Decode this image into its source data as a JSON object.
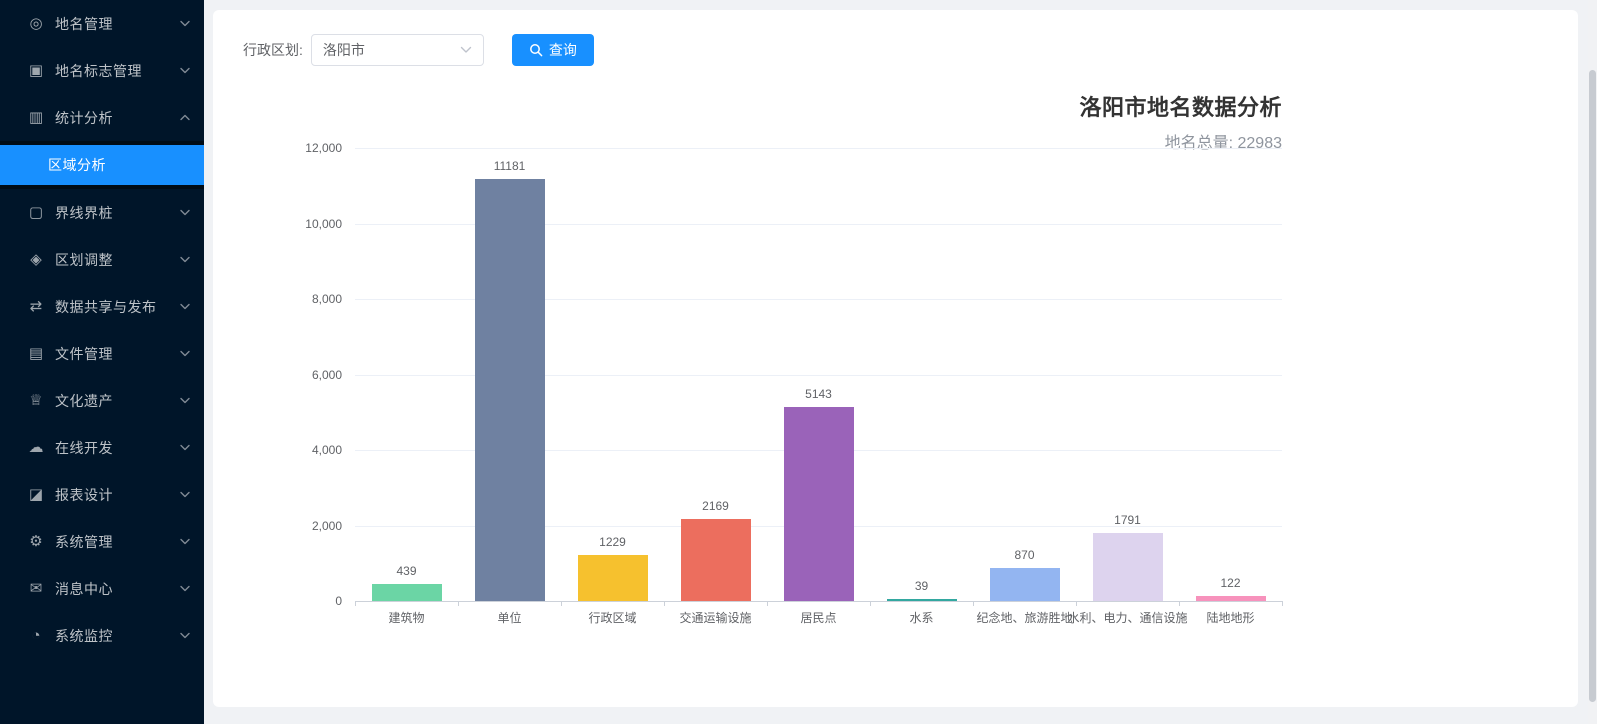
{
  "sidebar": {
    "items": [
      {
        "label": "地名管理",
        "icon": "location-pin",
        "expanded": false
      },
      {
        "label": "地名标志管理",
        "icon": "save-badge",
        "expanded": false
      },
      {
        "label": "统计分析",
        "icon": "bar-chart",
        "expanded": true,
        "children": [
          {
            "label": "区域分析",
            "active": true
          }
        ]
      },
      {
        "label": "界线界桩",
        "icon": "boundary-frame",
        "expanded": false
      },
      {
        "label": "区划调整",
        "icon": "medal",
        "expanded": false
      },
      {
        "label": "数据共享与发布",
        "icon": "share",
        "expanded": false
      },
      {
        "label": "文件管理",
        "icon": "file",
        "expanded": false
      },
      {
        "label": "文化遗产",
        "icon": "crown",
        "expanded": false
      },
      {
        "label": "在线开发",
        "icon": "cloud",
        "expanded": false
      },
      {
        "label": "报表设计",
        "icon": "area-chart",
        "expanded": false
      },
      {
        "label": "系统管理",
        "icon": "gear",
        "expanded": false
      },
      {
        "label": "消息中心",
        "icon": "message",
        "expanded": false
      },
      {
        "label": "系统监控",
        "icon": "monitor",
        "expanded": false
      }
    ]
  },
  "icons": {
    "location-pin": "◎",
    "save-badge": "▣",
    "bar-chart": "▥",
    "boundary-frame": "▢",
    "medal": "◈",
    "share": "⇄",
    "file": "▤",
    "crown": "♕",
    "cloud": "☁",
    "area-chart": "◪",
    "gear": "⚙",
    "message": "✉",
    "monitor": "◔"
  },
  "filter": {
    "label": "行政区划:",
    "select_value": "洛阳市",
    "search_button": "查询"
  },
  "chart_data": {
    "type": "bar",
    "title": "洛阳市地名数据分析",
    "subtitle": "地名总量: 22983",
    "total": 22983,
    "categories": [
      "建筑物",
      "单位",
      "行政区域",
      "交通运输设施",
      "居民点",
      "水系",
      "纪念地、旅游胜地",
      "水利、电力、通信设施",
      "陆地地形"
    ],
    "values": [
      439,
      11181,
      1229,
      2169,
      5143,
      39,
      870,
      1791,
      122
    ],
    "bar_colors": [
      "#6bd5a5",
      "#6f81a1",
      "#f6c12e",
      "#ec6e5e",
      "#9a63b9",
      "#33a8a0",
      "#93b5f1",
      "#ddd3ee",
      "#f792bc"
    ],
    "xlabel": "",
    "ylabel": "",
    "ylim": [
      0,
      12000
    ],
    "ytick_step": 2000,
    "ytick_labels_top_to_bottom": [
      "12,000",
      "10,000",
      "8,000",
      "6,000",
      "4,000",
      "2,000",
      "0"
    ],
    "grid": true,
    "legend": false,
    "accent_color": "#1890ff"
  }
}
